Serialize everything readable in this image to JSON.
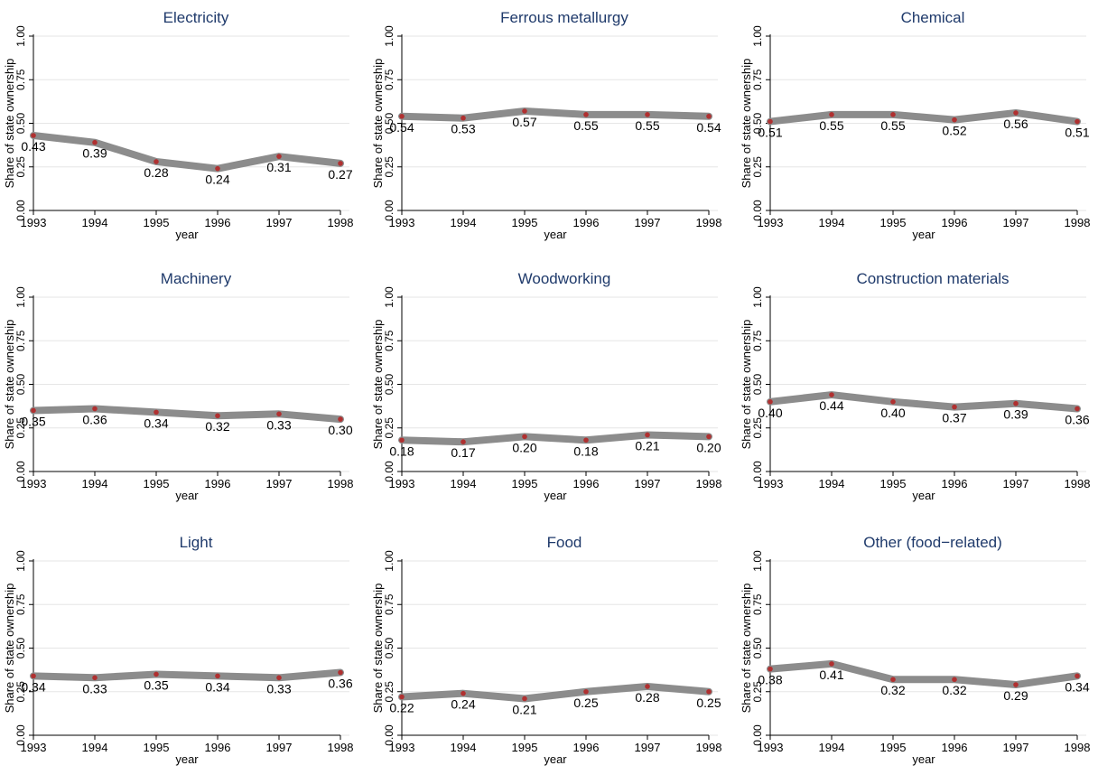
{
  "chart_data": [
    {
      "type": "line",
      "title": "Electricity",
      "xlabel": "year",
      "ylabel": "Share of state ownership",
      "x": [
        1993,
        1994,
        1995,
        1996,
        1997,
        1998
      ],
      "values": [
        0.43,
        0.39,
        0.28,
        0.24,
        0.31,
        0.27
      ],
      "labels": [
        "0.43",
        "0.39",
        "0.28",
        "0.24",
        "0.31",
        "0.27"
      ],
      "ylim": [
        0,
        1
      ],
      "yticks": [
        "0.00",
        "0.25",
        "0.50",
        "0.75",
        "1.00"
      ],
      "grid": true,
      "legend": "none"
    },
    {
      "type": "line",
      "title": "Ferrous metallurgy",
      "xlabel": "year",
      "ylabel": "Share of state ownership",
      "x": [
        1993,
        1994,
        1995,
        1996,
        1997,
        1998
      ],
      "values": [
        0.54,
        0.53,
        0.57,
        0.55,
        0.55,
        0.54
      ],
      "labels": [
        "0.54",
        "0.53",
        "0.57",
        "0.55",
        "0.55",
        "0.54"
      ],
      "ylim": [
        0,
        1
      ],
      "yticks": [
        "0.00",
        "0.25",
        "0.50",
        "0.75",
        "1.00"
      ],
      "grid": true,
      "legend": "none"
    },
    {
      "type": "line",
      "title": "Chemical",
      "xlabel": "year",
      "ylabel": "Share of state ownership",
      "x": [
        1993,
        1994,
        1995,
        1996,
        1997,
        1998
      ],
      "values": [
        0.51,
        0.55,
        0.55,
        0.52,
        0.56,
        0.51
      ],
      "labels": [
        "0.51",
        "0.55",
        "0.55",
        "0.52",
        "0.56",
        "0.51"
      ],
      "ylim": [
        0,
        1
      ],
      "yticks": [
        "0.00",
        "0.25",
        "0.50",
        "0.75",
        "1.00"
      ],
      "grid": true,
      "legend": "none"
    },
    {
      "type": "line",
      "title": "Machinery",
      "xlabel": "year",
      "ylabel": "Share of state ownership",
      "x": [
        1993,
        1994,
        1995,
        1996,
        1997,
        1998
      ],
      "values": [
        0.35,
        0.36,
        0.34,
        0.32,
        0.33,
        0.3
      ],
      "labels": [
        "0.35",
        "0.36",
        "0.34",
        "0.32",
        "0.33",
        "0.30"
      ],
      "ylim": [
        0,
        1
      ],
      "yticks": [
        "0.00",
        "0.25",
        "0.50",
        "0.75",
        "1.00"
      ],
      "grid": true,
      "legend": "none"
    },
    {
      "type": "line",
      "title": "Woodworking",
      "xlabel": "year",
      "ylabel": "Share of state ownership",
      "x": [
        1993,
        1994,
        1995,
        1996,
        1997,
        1998
      ],
      "values": [
        0.18,
        0.17,
        0.2,
        0.18,
        0.21,
        0.2
      ],
      "labels": [
        "0.18",
        "0.17",
        "0.20",
        "0.18",
        "0.21",
        "0.20"
      ],
      "ylim": [
        0,
        1
      ],
      "yticks": [
        "0.00",
        "0.25",
        "0.50",
        "0.75",
        "1.00"
      ],
      "grid": true,
      "legend": "none"
    },
    {
      "type": "line",
      "title": "Construction materials",
      "xlabel": "year",
      "ylabel": "Share of state ownership",
      "x": [
        1993,
        1994,
        1995,
        1996,
        1997,
        1998
      ],
      "values": [
        0.4,
        0.44,
        0.4,
        0.37,
        0.39,
        0.36
      ],
      "labels": [
        "0.40",
        "0.44",
        "0.40",
        "0.37",
        "0.39",
        "0.36"
      ],
      "ylim": [
        0,
        1
      ],
      "yticks": [
        "0.00",
        "0.25",
        "0.50",
        "0.75",
        "1.00"
      ],
      "grid": true,
      "legend": "none"
    },
    {
      "type": "line",
      "title": "Light",
      "xlabel": "year",
      "ylabel": "Share of state ownership",
      "x": [
        1993,
        1994,
        1995,
        1996,
        1997,
        1998
      ],
      "values": [
        0.34,
        0.33,
        0.35,
        0.34,
        0.33,
        0.36
      ],
      "labels": [
        "0.34",
        "0.33",
        "0.35",
        "0.34",
        "0.33",
        "0.36"
      ],
      "ylim": [
        0,
        1
      ],
      "yticks": [
        "0.00",
        "0.25",
        "0.50",
        "0.75",
        "1.00"
      ],
      "grid": true,
      "legend": "none"
    },
    {
      "type": "line",
      "title": "Food",
      "xlabel": "year",
      "ylabel": "Share of state ownership",
      "x": [
        1993,
        1994,
        1995,
        1996,
        1997,
        1998
      ],
      "values": [
        0.22,
        0.24,
        0.21,
        0.25,
        0.28,
        0.25
      ],
      "labels": [
        "0.22",
        "0.24",
        "0.21",
        "0.25",
        "0.28",
        "0.25"
      ],
      "ylim": [
        0,
        1
      ],
      "yticks": [
        "0.00",
        "0.25",
        "0.50",
        "0.75",
        "1.00"
      ],
      "grid": true,
      "legend": "none"
    },
    {
      "type": "line",
      "title": "Other (food−related)",
      "xlabel": "year",
      "ylabel": "Share of state ownership",
      "x": [
        1993,
        1994,
        1995,
        1996,
        1997,
        1998
      ],
      "values": [
        0.38,
        0.41,
        0.32,
        0.32,
        0.29,
        0.34
      ],
      "labels": [
        "0.38",
        "0.41",
        "0.32",
        "0.32",
        "0.29",
        "0.34"
      ],
      "ylim": [
        0,
        1
      ],
      "yticks": [
        "0.00",
        "0.25",
        "0.50",
        "0.75",
        "1.00"
      ],
      "grid": true,
      "legend": "none"
    }
  ],
  "style": {
    "line_color": "#8c8c8c",
    "marker_color": "#b03030",
    "grid_color": "#e6e6e6",
    "title_color": "#1f3a6b"
  }
}
